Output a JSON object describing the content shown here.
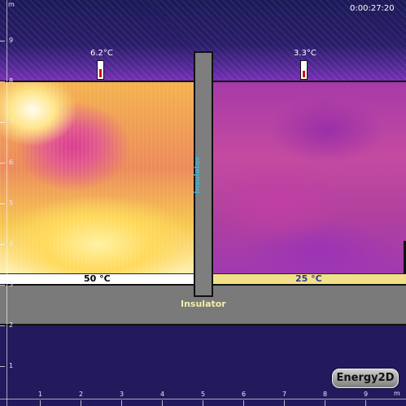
{
  "app": {
    "timer": "0:00:27:20",
    "badge": "Energy2D"
  },
  "colors": {
    "insulator_text": "#f2eeaa",
    "left_strip_text": "#000000",
    "right_strip_text": "#2b3a9a",
    "wall_text": "#3bb6d8"
  },
  "thermometers": [
    {
      "label": "6.2°C",
      "fill_fraction": 0.55
    },
    {
      "label": "3.3°C",
      "fill_fraction": 0.45
    }
  ],
  "heaters": {
    "left_label": "50 °C",
    "right_label": "25 °C"
  },
  "labels": {
    "slab": "Insulator",
    "wall": "Insulator"
  },
  "rulers": {
    "unit": "m",
    "vertical_ticks": [
      "9",
      "8",
      "7",
      "6",
      "5",
      "4",
      "3",
      "2",
      "1"
    ],
    "horizontal_ticks": [
      "1",
      "2",
      "3",
      "4",
      "5",
      "6",
      "7",
      "8",
      "9"
    ]
  }
}
